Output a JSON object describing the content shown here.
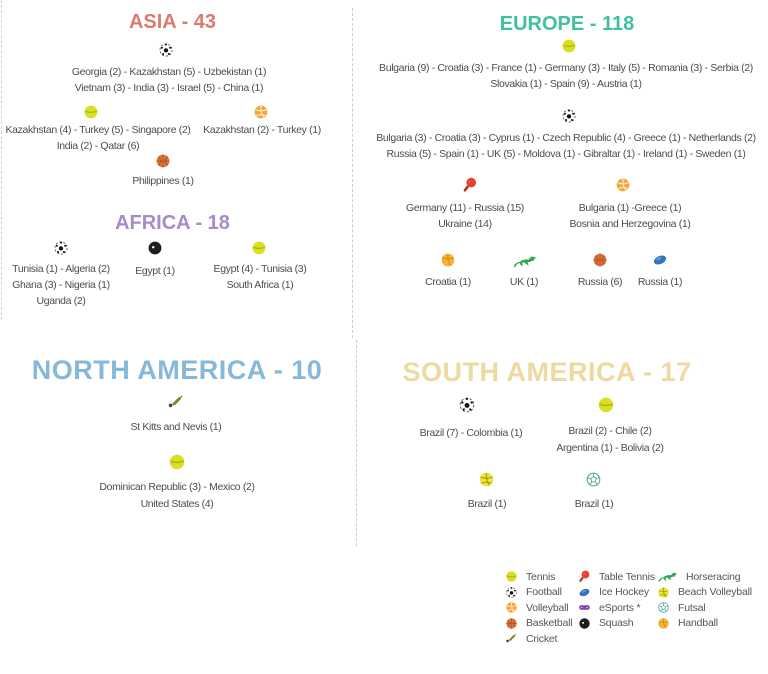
{
  "palette": {
    "asia": "#e0796d",
    "africa": "#a78bc9",
    "europe": "#3fc0a0",
    "north_america": "#85b8d9",
    "south_america": "#eed9a0",
    "body_text": "#4d4d4d"
  },
  "sections": {
    "asia": {
      "title": "ASIA - 43",
      "groups": [
        {
          "icon": "football",
          "lines": [
            "Georgia (2) - Kazakhstan (5) - Uzbekistan (1)",
            "Vietnam (3) - India (3) - Israel (5) - China (1)"
          ]
        },
        {
          "icon": "tennis",
          "lines": [
            "Kazakhstan (4) - Turkey (5) - Singapore (2)",
            "India (2) - Qatar (6)"
          ]
        },
        {
          "icon": "volleyball",
          "lines": [
            "Kazakhstan (2) - Turkey (1)"
          ]
        },
        {
          "icon": "basketball",
          "lines": [
            "Philippines (1)"
          ]
        }
      ]
    },
    "africa": {
      "title": "AFRICA - 18",
      "groups": [
        {
          "icon": "football",
          "lines": [
            "Tunisia (1) - Algeria (2)",
            "Ghana (3) - Nigeria (1)",
            "Uganda (2)"
          ]
        },
        {
          "icon": "squash",
          "lines": [
            "Egypt (1)"
          ]
        },
        {
          "icon": "tennis",
          "lines": [
            "Egypt (4) - Tunisia (3)",
            "South Africa (1)"
          ]
        }
      ]
    },
    "europe": {
      "title": "EUROPE - 118",
      "groups": [
        {
          "icon": "tennis",
          "lines": [
            "Bulgaria (9) - Croatia (3) - France (1) - Germany (3) - Italy (5) - Romania (3) - Serbia (2)",
            "Slovakia (1) - Spain (9) - Austria (1)"
          ]
        },
        {
          "icon": "football",
          "lines": [
            "Bulgaria (3) - Croatia (3) - Cyprus (1) - Czech Republic (4) - Greece (1) - Netherlands (2)",
            "Russia (5) - Spain (1) - UK (5) - Moldova (1) - Gibraltar (1) - Ireland (1) - Sweden (1)"
          ]
        },
        {
          "icon": "table-tennis",
          "lines": [
            "Germany (11) - Russia (15)",
            "Ukraine (14)"
          ]
        },
        {
          "icon": "volleyball",
          "lines": [
            "Bulgaria (1) -Greece (1)",
            "Bosnia and Herzegovina (1)"
          ]
        },
        {
          "icon": "handball",
          "lines": [
            "Croatia (1)"
          ]
        },
        {
          "icon": "horseracing",
          "lines": [
            "UK (1)"
          ]
        },
        {
          "icon": "basketball",
          "lines": [
            "Russia (6)"
          ]
        },
        {
          "icon": "ice-hockey",
          "lines": [
            "Russia (1)"
          ]
        }
      ]
    },
    "north_america": {
      "title": "NORTH AMERICA - 10",
      "groups": [
        {
          "icon": "cricket",
          "lines": [
            "St Kitts and Nevis (1)"
          ]
        },
        {
          "icon": "tennis",
          "lines": [
            "Dominican Republic (3) - Mexico (2)",
            "United States (4)"
          ]
        }
      ]
    },
    "south_america": {
      "title": "SOUTH AMERICA - 17",
      "groups": [
        {
          "icon": "football",
          "lines": [
            "Brazil (7) - Colombia (1)"
          ]
        },
        {
          "icon": "tennis",
          "lines": [
            "Brazil (2) - Chile (2)",
            "Argentina (1) - Bolivia (2)"
          ]
        },
        {
          "icon": "beach-volleyball",
          "lines": [
            "Brazil (1)"
          ]
        },
        {
          "icon": "futsal",
          "lines": [
            "Brazil (1)"
          ]
        }
      ]
    }
  },
  "legend": {
    "columns": [
      {
        "items": [
          {
            "icon": "tennis",
            "label": "Tennis"
          },
          {
            "icon": "football",
            "label": "Football"
          },
          {
            "icon": "volleyball",
            "label": "Volleyball"
          },
          {
            "icon": "basketball",
            "label": "Basketball"
          },
          {
            "icon": "cricket",
            "label": "Cricket"
          }
        ]
      },
      {
        "items": [
          {
            "icon": "table-tennis",
            "label": "Table Tennis"
          },
          {
            "icon": "ice-hockey",
            "label": "Ice Hockey"
          },
          {
            "icon": "esports",
            "label": "eSports *"
          },
          {
            "icon": "squash",
            "label": "Squash"
          }
        ]
      },
      {
        "items": [
          {
            "icon": "horseracing",
            "label": "Horseracing"
          },
          {
            "icon": "beach-volleyball",
            "label": "Beach Volleyball"
          },
          {
            "icon": "futsal",
            "label": "Futsal"
          },
          {
            "icon": "handball",
            "label": "Handball"
          }
        ]
      }
    ]
  }
}
